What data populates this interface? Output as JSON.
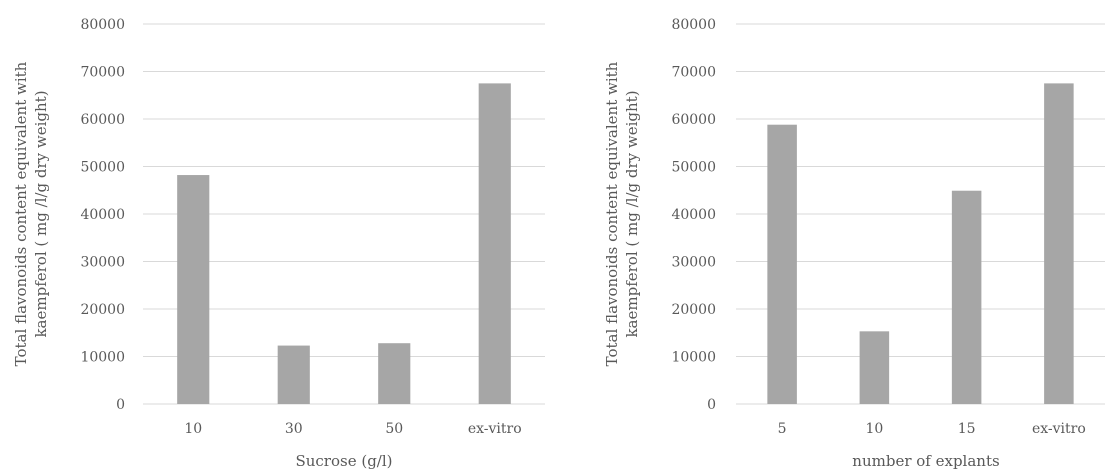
{
  "chart_data": [
    {
      "type": "bar",
      "categories": [
        "10",
        "30",
        "50",
        "ex-vitro"
      ],
      "values": [
        48200,
        12300,
        12800,
        67500
      ],
      "xlabel": "Sucrose (g/l)",
      "ylabel_lines": [
        "Total flavonoids content equivalent with",
        "kaempferol ( mg /l/g dry weight)"
      ],
      "ylim": [
        0,
        80000
      ],
      "yticks": [
        0,
        10000,
        20000,
        30000,
        40000,
        50000,
        60000,
        70000,
        80000
      ],
      "grid": true,
      "bar_color": "#a6a6a6",
      "gridline_color": "#d9d9d9"
    },
    {
      "type": "bar",
      "categories": [
        "5",
        "10",
        "15",
        "ex-vitro"
      ],
      "values": [
        58800,
        15300,
        44900,
        67500
      ],
      "xlabel": "number of explants",
      "ylabel_lines": [
        "Total flavonoids content equivalent with",
        "kaempferol ( mg /l/g dry weight)"
      ],
      "ylim": [
        0,
        80000
      ],
      "yticks": [
        0,
        10000,
        20000,
        30000,
        40000,
        50000,
        60000,
        70000,
        80000
      ],
      "grid": true,
      "bar_color": "#a6a6a6",
      "gridline_color": "#d9d9d9"
    }
  ]
}
